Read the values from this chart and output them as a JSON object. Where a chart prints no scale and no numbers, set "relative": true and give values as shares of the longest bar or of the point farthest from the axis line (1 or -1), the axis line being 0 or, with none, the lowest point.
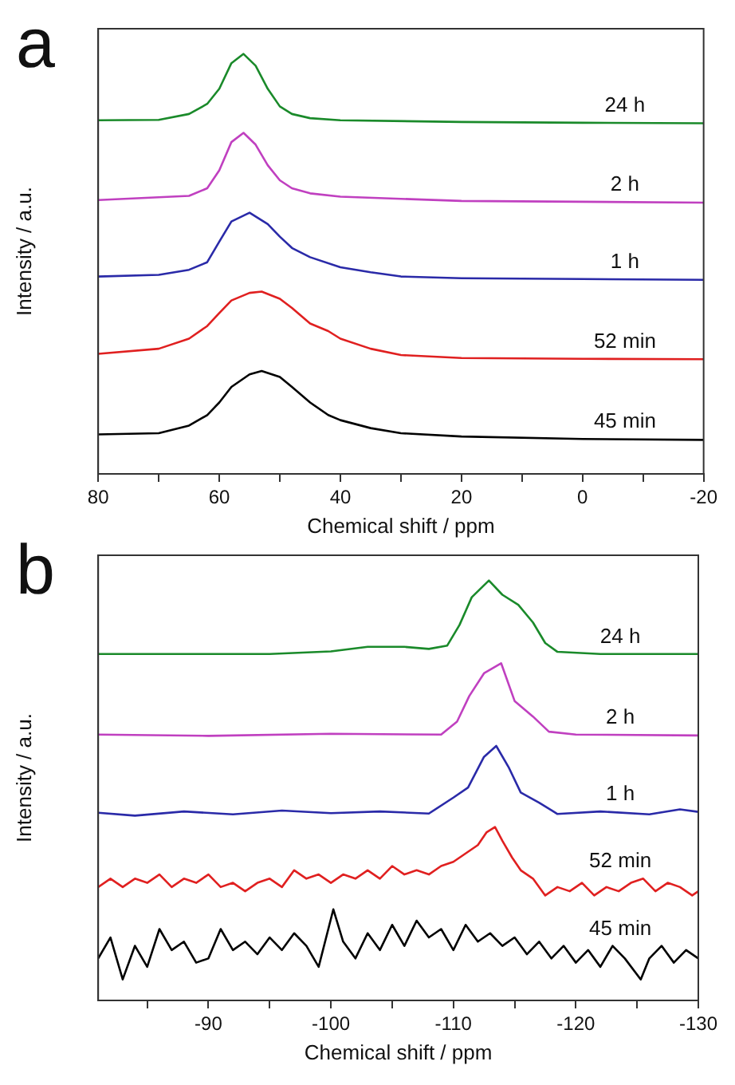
{
  "chart_data": [
    {
      "type": "line",
      "title": "a",
      "xlabel": "Chemical shift / ppm",
      "ylabel": "Intensity / a.u.",
      "relative": true,
      "legend": false,
      "grid": false,
      "marker": "none",
      "line_style": "solid",
      "xlim": [
        80,
        -20
      ],
      "xticks": [
        80,
        {
          "value": 70,
          "label": null
        },
        60,
        {
          "value": 50,
          "label": null
        },
        40,
        {
          "value": 30,
          "label": null
        },
        20,
        {
          "value": 10,
          "label": null
        },
        0,
        {
          "value": -10,
          "label": null
        },
        -20
      ],
      "series": [
        {
          "name": "24 h",
          "color": "#1a8a2a",
          "x": [
            80,
            70,
            65,
            62,
            60,
            58,
            56,
            54,
            52,
            50,
            48,
            45,
            40,
            20,
            0,
            -20
          ],
          "values": [
            0.842,
            0.843,
            0.857,
            0.881,
            0.917,
            0.978,
            1.0,
            0.972,
            0.917,
            0.875,
            0.857,
            0.847,
            0.842,
            0.838,
            0.836,
            0.835
          ]
        },
        {
          "name": "2 h",
          "color": "#c040c0",
          "x": [
            80,
            65,
            62,
            60,
            58,
            56,
            54,
            52,
            50,
            48,
            45,
            40,
            20,
            -20
          ],
          "values": [
            0.652,
            0.662,
            0.68,
            0.723,
            0.79,
            0.812,
            0.784,
            0.735,
            0.699,
            0.68,
            0.668,
            0.66,
            0.65,
            0.646
          ]
        },
        {
          "name": "1 h",
          "color": "#2a2aa8",
          "x": [
            80,
            70,
            65,
            62,
            60,
            58,
            55,
            52,
            50,
            48,
            45,
            40,
            35,
            30,
            20,
            0,
            -20
          ],
          "values": [
            0.47,
            0.474,
            0.486,
            0.504,
            0.553,
            0.601,
            0.622,
            0.595,
            0.565,
            0.538,
            0.516,
            0.492,
            0.48,
            0.47,
            0.466,
            0.464,
            0.462
          ]
        },
        {
          "name": "52 min",
          "color": "#e02020",
          "x": [
            80,
            70,
            65,
            62,
            60,
            58,
            55,
            53,
            50,
            48,
            45,
            42,
            40,
            35,
            30,
            20,
            0,
            -20
          ],
          "values": [
            0.286,
            0.298,
            0.322,
            0.352,
            0.383,
            0.413,
            0.431,
            0.434,
            0.417,
            0.395,
            0.358,
            0.34,
            0.322,
            0.298,
            0.283,
            0.276,
            0.274,
            0.273
          ]
        },
        {
          "name": "45 min",
          "color": "#000000",
          "x": [
            80,
            70,
            65,
            62,
            60,
            58,
            55,
            53,
            50,
            48,
            45,
            42,
            40,
            35,
            30,
            20,
            0,
            -20
          ],
          "values": [
            0.094,
            0.097,
            0.115,
            0.14,
            0.17,
            0.207,
            0.237,
            0.245,
            0.231,
            0.207,
            0.17,
            0.14,
            0.128,
            0.109,
            0.097,
            0.089,
            0.083,
            0.081
          ]
        }
      ]
    },
    {
      "type": "line",
      "title": "b",
      "xlabel": "Chemical shift / ppm",
      "ylabel": "Intensity / a.u.",
      "relative": true,
      "legend": false,
      "grid": false,
      "marker": "none",
      "line_style": "solid",
      "xlim": [
        -81,
        -130
      ],
      "xticks": [
        {
          "value": -85,
          "label": null
        },
        -90,
        {
          "value": -95,
          "label": null
        },
        -100,
        {
          "value": -105,
          "label": null
        },
        -110,
        {
          "value": -115,
          "label": null
        },
        -120,
        {
          "value": -125,
          "label": null
        },
        -130
      ],
      "series": [
        {
          "name": "24 h",
          "color": "#1a8a2a",
          "x": [
            -81,
            -95,
            -100,
            -103,
            -106,
            -108,
            -109.5,
            -110.5,
            -111.5,
            -112.9,
            -114,
            -115.3,
            -116.5,
            -117.5,
            -118.5,
            -122,
            -130
          ],
          "values": [
            0.825,
            0.825,
            0.831,
            0.842,
            0.842,
            0.837,
            0.845,
            0.894,
            0.96,
            1.0,
            0.966,
            0.942,
            0.9,
            0.851,
            0.83,
            0.825,
            0.825
          ]
        },
        {
          "name": "2 h",
          "color": "#c040c0",
          "x": [
            -81,
            -90,
            -100,
            -109,
            -110.3,
            -111.3,
            -112.5,
            -113.9,
            -115,
            -116.5,
            -117.8,
            -120,
            -130
          ],
          "values": [
            0.633,
            0.63,
            0.635,
            0.633,
            0.664,
            0.725,
            0.779,
            0.803,
            0.713,
            0.676,
            0.64,
            0.633,
            0.631
          ]
        },
        {
          "name": "1 h",
          "color": "#2a2aa8",
          "x": [
            -81,
            -84,
            -88,
            -92,
            -96,
            -100,
            -104,
            -108,
            -110,
            -111.2,
            -112.5,
            -113.5,
            -114.5,
            -115.5,
            -117,
            -118.5,
            -122,
            -126,
            -128.5,
            -130
          ],
          "values": [
            0.447,
            0.44,
            0.45,
            0.443,
            0.452,
            0.446,
            0.45,
            0.445,
            0.483,
            0.507,
            0.58,
            0.606,
            0.556,
            0.495,
            0.471,
            0.444,
            0.45,
            0.443,
            0.455,
            0.449
          ]
        },
        {
          "name": "52 min",
          "color": "#e02020",
          "x": [
            -81,
            -82,
            -83,
            -84,
            -85,
            -86,
            -87,
            -88,
            -89,
            -90,
            -91,
            -92,
            -93,
            -94,
            -95,
            -96,
            -97,
            -98,
            -99,
            -100,
            -101,
            -102,
            -103,
            -104,
            -105,
            -106,
            -107,
            -108,
            -109,
            -110,
            -111,
            -112,
            -112.7,
            -113.4,
            -114,
            -114.8,
            -115.5,
            -116.5,
            -117.5,
            -118.5,
            -119.5,
            -120.5,
            -121.5,
            -122.5,
            -123.5,
            -124.5,
            -125.5,
            -126.5,
            -127.5,
            -128.5,
            -129.5,
            -130
          ],
          "values": [
            0.27,
            0.29,
            0.27,
            0.29,
            0.28,
            0.3,
            0.27,
            0.29,
            0.28,
            0.3,
            0.27,
            0.28,
            0.26,
            0.28,
            0.29,
            0.27,
            0.31,
            0.29,
            0.3,
            0.28,
            0.3,
            0.29,
            0.31,
            0.29,
            0.32,
            0.3,
            0.31,
            0.3,
            0.32,
            0.33,
            0.35,
            0.37,
            0.4,
            0.413,
            0.38,
            0.34,
            0.31,
            0.29,
            0.25,
            0.27,
            0.26,
            0.28,
            0.25,
            0.27,
            0.26,
            0.28,
            0.29,
            0.26,
            0.28,
            0.27,
            0.25,
            0.26
          ]
        },
        {
          "name": "45 min",
          "color": "#000000",
          "x": [
            -81,
            -82,
            -83,
            -84,
            -85,
            -86,
            -87,
            -88,
            -89,
            -90,
            -91,
            -92,
            -93,
            -94,
            -95,
            -96,
            -97,
            -98,
            -99,
            -100.2,
            -101,
            -102,
            -103,
            -104,
            -105,
            -106,
            -107,
            -108,
            -109,
            -110,
            -111,
            -112,
            -113,
            -114,
            -115,
            -116,
            -117,
            -118,
            -119,
            -120,
            -121,
            -122,
            -123,
            -124,
            -125.3,
            -126,
            -127,
            -128,
            -129,
            -130
          ],
          "values": [
            0.1,
            0.15,
            0.05,
            0.13,
            0.08,
            0.17,
            0.12,
            0.14,
            0.09,
            0.1,
            0.17,
            0.12,
            0.14,
            0.11,
            0.15,
            0.12,
            0.16,
            0.13,
            0.08,
            0.217,
            0.14,
            0.1,
            0.16,
            0.12,
            0.18,
            0.13,
            0.19,
            0.15,
            0.17,
            0.12,
            0.18,
            0.14,
            0.16,
            0.13,
            0.15,
            0.11,
            0.14,
            0.1,
            0.13,
            0.09,
            0.12,
            0.08,
            0.13,
            0.1,
            0.05,
            0.1,
            0.13,
            0.09,
            0.12,
            0.1
          ]
        }
      ]
    }
  ]
}
